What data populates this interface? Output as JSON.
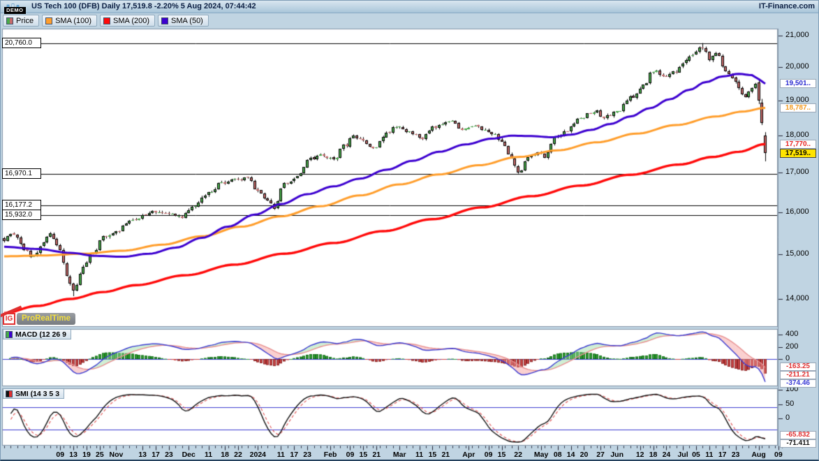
{
  "header": {
    "badge": "DEMO",
    "title": "US Tech 100 (DFB) Daily 17,519.8 -2.20% 5 Aug 2024, 07:44:42",
    "brand": "IT-Finance.com"
  },
  "watermark": {
    "ig": "IG",
    "prt": "ProRealTime"
  },
  "legend": {
    "items": [
      {
        "label": "Price",
        "icon": "price-icon",
        "swatch": [
          "#47ad49",
          "#c76a6a"
        ]
      },
      {
        "label": "SMA (100)",
        "icon": "sma100-icon",
        "swatch": [
          "#ff9e2c"
        ]
      },
      {
        "label": "SMA (200)",
        "icon": "sma200-icon",
        "swatch": [
          "#ff0a0a"
        ]
      },
      {
        "label": "SMA (50)",
        "icon": "sma50-icon",
        "swatch": [
          "#3c00d0"
        ]
      }
    ]
  },
  "chart_data": {
    "type": "candlestick",
    "symbol": "US Tech 100 (DFB)",
    "timeframe": "Daily",
    "last_price": 17519.8,
    "change_pct": -2.2,
    "last_update": "5 Aug 2024, 07:44:42",
    "y_axis": {
      "scale": "log",
      "ticks": [
        {
          "v": 21000,
          "t": "21,000"
        },
        {
          "v": 20000,
          "t": "20,000"
        },
        {
          "v": 19000,
          "t": "19,000"
        },
        {
          "v": 18000,
          "t": "18,000"
        },
        {
          "v": 17000,
          "t": "17,000"
        },
        {
          "v": 16000,
          "t": "16,000"
        },
        {
          "v": 15000,
          "t": "15,000"
        },
        {
          "v": 14000,
          "t": "14,000"
        }
      ]
    },
    "price_lines": [
      {
        "v": 20760.0,
        "t": "20,760.0"
      },
      {
        "v": 16970.1,
        "t": "16,970.1"
      },
      {
        "v": 16177.2,
        "t": "16,177.2"
      },
      {
        "v": 15932.0,
        "t": "15,932.0"
      }
    ],
    "value_boxes": [
      {
        "t": "19,501..",
        "v": 19501,
        "c": "#2a2ad0",
        "bg": "#ffffff",
        "series": "SMA (50)"
      },
      {
        "t": "18,787..",
        "v": 18787,
        "c": "#f29a1e",
        "bg": "#ffffff",
        "series": "SMA (100)"
      },
      {
        "t": "17,770..",
        "v": 17770,
        "c": "#e82020",
        "bg": "#ffffff",
        "series": "SMA (200)"
      },
      {
        "t": "17,519..",
        "v": 17519.8,
        "c": "#000000",
        "bg": "#ffe400",
        "series": "Price"
      }
    ],
    "days": 232,
    "price_anchors": [
      [
        0,
        15350
      ],
      [
        3,
        15480
      ],
      [
        6,
        15120
      ],
      [
        9,
        14920
      ],
      [
        12,
        15320
      ],
      [
        14,
        15500
      ],
      [
        17,
        15050
      ],
      [
        19,
        14500
      ],
      [
        21,
        14200
      ],
      [
        24,
        14680
      ],
      [
        27,
        15050
      ],
      [
        30,
        15380
      ],
      [
        34,
        15520
      ],
      [
        38,
        15780
      ],
      [
        42,
        15900
      ],
      [
        46,
        16020
      ],
      [
        50,
        15950
      ],
      [
        54,
        15900
      ],
      [
        58,
        16180
      ],
      [
        62,
        16500
      ],
      [
        66,
        16750
      ],
      [
        70,
        16820
      ],
      [
        74,
        16870
      ],
      [
        77,
        16550
      ],
      [
        80,
        16280
      ],
      [
        82,
        16120
      ],
      [
        85,
        16700
      ],
      [
        89,
        16920
      ],
      [
        93,
        17380
      ],
      [
        97,
        17460
      ],
      [
        100,
        17320
      ],
      [
        103,
        17700
      ],
      [
        106,
        17960
      ],
      [
        109,
        17860
      ],
      [
        112,
        17600
      ],
      [
        115,
        18000
      ],
      [
        119,
        18260
      ],
      [
        123,
        18080
      ],
      [
        127,
        17960
      ],
      [
        131,
        18260
      ],
      [
        135,
        18410
      ],
      [
        139,
        18220
      ],
      [
        143,
        18280
      ],
      [
        147,
        18120
      ],
      [
        151,
        17880
      ],
      [
        154,
        17380
      ],
      [
        156,
        16990
      ],
      [
        159,
        17420
      ],
      [
        162,
        17560
      ],
      [
        164,
        17420
      ],
      [
        167,
        17920
      ],
      [
        171,
        18160
      ],
      [
        175,
        18500
      ],
      [
        179,
        18700
      ],
      [
        182,
        18560
      ],
      [
        186,
        18660
      ],
      [
        190,
        19080
      ],
      [
        194,
        19420
      ],
      [
        197,
        19900
      ],
      [
        200,
        19720
      ],
      [
        203,
        19820
      ],
      [
        206,
        20120
      ],
      [
        209,
        20380
      ],
      [
        212,
        20620
      ],
      [
        214,
        20280
      ],
      [
        216,
        20480
      ],
      [
        219,
        19820
      ],
      [
        221,
        19720
      ],
      [
        223,
        19320
      ],
      [
        225,
        19080
      ],
      [
        227,
        19380
      ],
      [
        228,
        19560
      ],
      [
        229,
        19000
      ],
      [
        230,
        18350
      ],
      [
        231,
        17519.8
      ]
    ],
    "final_candles": [
      [
        19550,
        19650,
        18900,
        19000
      ],
      [
        18950,
        19050,
        18300,
        18350
      ],
      [
        18000,
        18100,
        17305,
        17519.8
      ]
    ],
    "peak": {
      "day": 212,
      "high": 20760
    },
    "trough": {
      "day": 21,
      "low": 14060
    },
    "sma50_anchors": [
      [
        0,
        15170
      ],
      [
        10,
        15120
      ],
      [
        20,
        15030
      ],
      [
        28,
        14960
      ],
      [
        36,
        14940
      ],
      [
        44,
        15010
      ],
      [
        52,
        15150
      ],
      [
        60,
        15380
      ],
      [
        68,
        15650
      ],
      [
        76,
        15940
      ],
      [
        84,
        16200
      ],
      [
        92,
        16450
      ],
      [
        100,
        16650
      ],
      [
        108,
        16850
      ],
      [
        116,
        17080
      ],
      [
        124,
        17320
      ],
      [
        132,
        17560
      ],
      [
        140,
        17760
      ],
      [
        148,
        17920
      ],
      [
        154,
        18000
      ],
      [
        160,
        17990
      ],
      [
        166,
        17960
      ],
      [
        172,
        18030
      ],
      [
        178,
        18160
      ],
      [
        184,
        18330
      ],
      [
        190,
        18540
      ],
      [
        196,
        18780
      ],
      [
        202,
        19040
      ],
      [
        208,
        19320
      ],
      [
        213,
        19550
      ],
      [
        218,
        19720
      ],
      [
        223,
        19800
      ],
      [
        227,
        19760
      ],
      [
        229,
        19640
      ],
      [
        231,
        19501
      ]
    ],
    "sma100_anchors": [
      [
        0,
        14950
      ],
      [
        12,
        14970
      ],
      [
        24,
        15010
      ],
      [
        36,
        15080
      ],
      [
        48,
        15220
      ],
      [
        60,
        15420
      ],
      [
        72,
        15650
      ],
      [
        84,
        15900
      ],
      [
        96,
        16150
      ],
      [
        108,
        16420
      ],
      [
        120,
        16700
      ],
      [
        132,
        16960
      ],
      [
        144,
        17200
      ],
      [
        156,
        17420
      ],
      [
        168,
        17600
      ],
      [
        180,
        17820
      ],
      [
        192,
        18060
      ],
      [
        204,
        18300
      ],
      [
        216,
        18540
      ],
      [
        224,
        18680
      ],
      [
        231,
        18787
      ]
    ],
    "sma200_anchors": [
      [
        0,
        13700
      ],
      [
        10,
        13850
      ],
      [
        20,
        14000
      ],
      [
        30,
        14150
      ],
      [
        40,
        14300
      ],
      [
        55,
        14520
      ],
      [
        70,
        14760
      ],
      [
        85,
        15010
      ],
      [
        100,
        15260
      ],
      [
        115,
        15540
      ],
      [
        130,
        15830
      ],
      [
        145,
        16120
      ],
      [
        160,
        16400
      ],
      [
        175,
        16670
      ],
      [
        190,
        16950
      ],
      [
        205,
        17220
      ],
      [
        215,
        17420
      ],
      [
        223,
        17560
      ],
      [
        231,
        17770
      ]
    ],
    "colors": {
      "up": "#47ad49",
      "down": "#c76a6a",
      "wick": "#000000",
      "sma50": "#3c00d0",
      "sma100": "#ff9e2c",
      "sma200": "#ff0a0a"
    }
  },
  "panels": {
    "macd": {
      "label": "MACD (12 26 9",
      "params": [
        12,
        26,
        9
      ],
      "icon_swatch": [
        "#47ad49",
        "#3c00d0"
      ],
      "ticks": [
        {
          "v": 400,
          "t": "400"
        },
        {
          "v": 200,
          "t": "200"
        },
        {
          "v": 0,
          "t": "0"
        }
      ],
      "value_boxes": [
        {
          "t": "-163.25",
          "v": -163.25,
          "c": "#e03030",
          "series": "histogram"
        },
        {
          "t": "-211.21",
          "v": -211.21,
          "c": "#e03030",
          "series": "signal"
        },
        {
          "t": "-374.46",
          "v": -374.46,
          "c": "#3c3cd6",
          "series": "macd"
        }
      ],
      "colors": {
        "macd_line": "#3b3bd1",
        "signal_line": "#e88f8f",
        "hist_up": "#2f9e2f",
        "hist_down": "#c94444",
        "fill_up": "rgba(150,220,160,0.45)",
        "fill_down": "rgba(245,150,150,0.45)",
        "zero_line": "#3b3bd1"
      }
    },
    "smi": {
      "label": "SMI (14 3 5 3",
      "params": [
        14,
        3,
        5,
        3
      ],
      "icon_swatch": [
        "#111111",
        "#e03030"
      ],
      "ticks": [
        {
          "v": 100,
          "t": "100"
        },
        {
          "v": 50,
          "t": "50"
        },
        {
          "v": 0,
          "t": "0"
        }
      ],
      "hlines": [
        40,
        -40
      ],
      "value_boxes": [
        {
          "t": "-65.832",
          "v": -65.832,
          "c": "#e03030",
          "series": "signal"
        },
        {
          "t": "-71.411",
          "v": -71.411,
          "c": "#111111",
          "series": "smi"
        }
      ],
      "colors": {
        "smi_line": "#111111",
        "signal_line": "#e05050",
        "hline": "#3b3bd1"
      }
    }
  },
  "x_axis": {
    "labels": [
      {
        "t": "09",
        "d": 17
      },
      {
        "t": "13",
        "d": 21
      },
      {
        "t": "19",
        "d": 25
      },
      {
        "t": "25",
        "d": 29
      },
      {
        "t": "Nov",
        "d": 34
      },
      {
        "t": "13",
        "d": 42
      },
      {
        "t": "17",
        "d": 46
      },
      {
        "t": "23",
        "d": 50
      },
      {
        "t": "Dec",
        "d": 56
      },
      {
        "t": "11",
        "d": 62
      },
      {
        "t": "18",
        "d": 67
      },
      {
        "t": "22",
        "d": 71
      },
      {
        "t": "2024",
        "d": 77
      },
      {
        "t": "11",
        "d": 84
      },
      {
        "t": "17",
        "d": 88
      },
      {
        "t": "23",
        "d": 92
      },
      {
        "t": "Feb",
        "d": 99
      },
      {
        "t": "09",
        "d": 105
      },
      {
        "t": "15",
        "d": 109
      },
      {
        "t": "21",
        "d": 113
      },
      {
        "t": "Mar",
        "d": 120
      },
      {
        "t": "11",
        "d": 126
      },
      {
        "t": "15",
        "d": 130
      },
      {
        "t": "21",
        "d": 134
      },
      {
        "t": "Apr",
        "d": 141
      },
      {
        "t": "09",
        "d": 147
      },
      {
        "t": "15",
        "d": 151
      },
      {
        "t": "22",
        "d": 156
      },
      {
        "t": "May",
        "d": 163
      },
      {
        "t": "08",
        "d": 168
      },
      {
        "t": "14",
        "d": 172
      },
      {
        "t": "20",
        "d": 176
      },
      {
        "t": "27",
        "d": 181
      },
      {
        "t": "Jun",
        "d": 186
      },
      {
        "t": "12",
        "d": 193
      },
      {
        "t": "18",
        "d": 197
      },
      {
        "t": "24",
        "d": 201
      },
      {
        "t": "Jul",
        "d": 206
      },
      {
        "t": "05",
        "d": 210
      },
      {
        "t": "11",
        "d": 214
      },
      {
        "t": "17",
        "d": 218
      },
      {
        "t": "23",
        "d": 222
      },
      {
        "t": "Aug",
        "d": 229
      },
      {
        "t": "09",
        "d": 235
      }
    ]
  }
}
